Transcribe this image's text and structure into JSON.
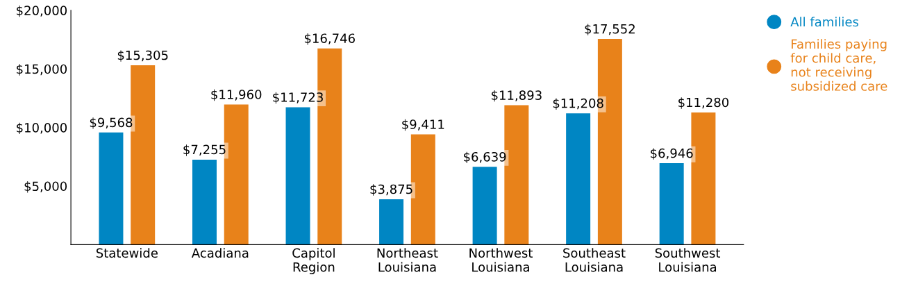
{
  "chart_data": {
    "type": "bar",
    "categories": [
      "Statewide",
      "Acadiana",
      "Capitol\nRegion",
      "Northeast\nLouisiana",
      "Northwest\nLouisiana",
      "Southeast\nLouisiana",
      "Southwest\nLouisiana"
    ],
    "series": [
      {
        "name": "All families",
        "color": "#0086c3",
        "values": [
          9568,
          7255,
          11723,
          3875,
          6639,
          11208,
          6946
        ],
        "value_labels": [
          "$9,568",
          "$7,255",
          "$11,723",
          "$3,875",
          "$6,639",
          "$11,208",
          "$6,946"
        ]
      },
      {
        "name": "Families paying for child care, not receiving subsidized care",
        "color": "#e8821a",
        "values": [
          15305,
          11960,
          16746,
          9411,
          11893,
          17552,
          11280
        ],
        "value_labels": [
          "$15,305",
          "$11,960",
          "$16,746",
          "$9,411",
          "$11,893",
          "$17,552",
          "$11,280"
        ]
      }
    ],
    "ylim": [
      0,
      20000
    ],
    "yticks": [
      {
        "value": 5000,
        "label": "$5,000"
      },
      {
        "value": 10000,
        "label": "$10,000"
      },
      {
        "value": 15000,
        "label": "$15,000"
      },
      {
        "value": 20000,
        "label": "$20,000"
      }
    ],
    "grid": false,
    "legend": "right"
  }
}
